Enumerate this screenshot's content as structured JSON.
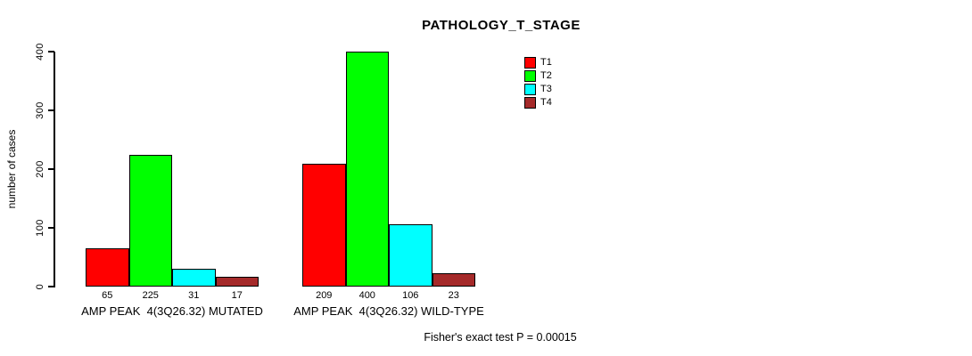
{
  "title": "PATHOLOGY_T_STAGE",
  "footer": "Fisher's exact test P = 0.00015",
  "chart_data": {
    "type": "bar",
    "title": "PATHOLOGY_T_STAGE",
    "xlabel": "",
    "ylabel": "number of cases",
    "ylim": [
      0,
      400
    ],
    "yticks": [
      0,
      100,
      200,
      300,
      400
    ],
    "grid": false,
    "legend_position": "top-right",
    "series": [
      {
        "name": "T1",
        "color": "#ff0000",
        "values": [
          65,
          209
        ]
      },
      {
        "name": "T2",
        "color": "#00ff00",
        "values": [
          225,
          400
        ]
      },
      {
        "name": "T3",
        "color": "#00ffff",
        "values": [
          31,
          106
        ]
      },
      {
        "name": "T4",
        "color": "#a52a2a",
        "values": [
          17,
          23
        ]
      }
    ],
    "categories": [
      "AMP PEAK  4(3Q26.32) MUTATED",
      "AMP PEAK  4(3Q26.32) WILD-TYPE"
    ],
    "groups": [
      {
        "label": "AMP PEAK  4(3Q26.32) MUTATED",
        "values": [
          65,
          225,
          31,
          17
        ]
      },
      {
        "label": "AMP PEAK  4(3Q26.32) WILD-TYPE",
        "values": [
          209,
          400,
          106,
          23
        ]
      }
    ],
    "annotation": "Fisher's exact test P = 0.00015"
  }
}
